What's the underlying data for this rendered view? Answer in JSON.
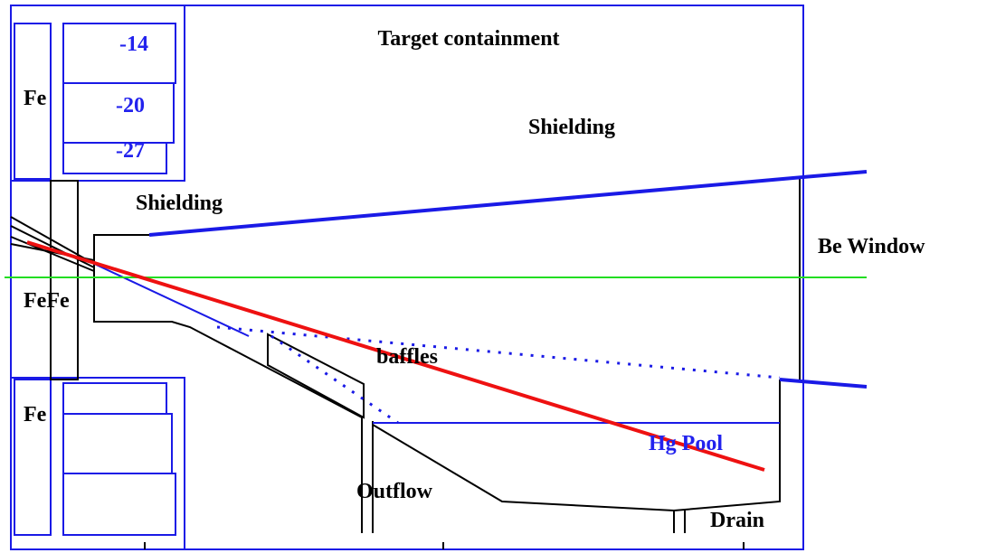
{
  "title": "Target containment",
  "labels": {
    "shielding_upper": "Shielding",
    "shielding_lower": "Shielding",
    "be_window": "Be Window",
    "fe_top": "Fe",
    "fe_middle": "FeFe",
    "fe_bottom": "Fe",
    "level_1": "-14",
    "level_2": "-20",
    "level_3": "-27",
    "baffles": "baffles",
    "hg_pool": "Hg Pool",
    "outflow": "Outflow",
    "drain": "Drain"
  }
}
